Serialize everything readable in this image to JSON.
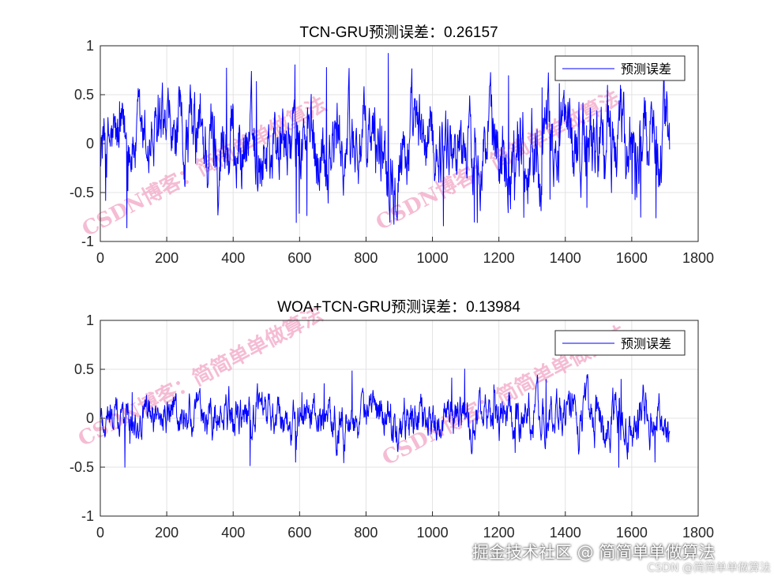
{
  "chart_data": [
    {
      "type": "line",
      "title": "TCN-GRU预测误差：0.26157",
      "xlabel": "",
      "ylabel": "",
      "xlim": [
        0,
        1800
      ],
      "ylim": [
        -1,
        1
      ],
      "xticks": [
        "0",
        "200",
        "400",
        "600",
        "800",
        "1000",
        "1200",
        "1400",
        "1600",
        "1800"
      ],
      "yticks": [
        "-1",
        "-0.5",
        "0",
        "0.5",
        "1"
      ],
      "grid": true,
      "legend_position": "top-right",
      "series": [
        {
          "name": "预测误差",
          "color": "#0000ff",
          "n_points": 1714,
          "approx_min": -0.88,
          "approx_max": 0.93,
          "envelope_x": [
            0,
            100,
            200,
            300,
            400,
            500,
            600,
            700,
            800,
            900,
            1000,
            1100,
            1200,
            1300,
            1400,
            1500,
            1600,
            1700
          ],
          "envelope_values": [
            0.45,
            0.4,
            0.42,
            0.55,
            0.55,
            0.48,
            0.45,
            0.5,
            0.48,
            0.55,
            0.45,
            0.42,
            0.5,
            0.55,
            0.48,
            0.55,
            0.5,
            0.55
          ]
        }
      ]
    },
    {
      "type": "line",
      "title": "WOA+TCN-GRU预测误差：0.13984",
      "xlabel": "",
      "ylabel": "",
      "xlim": [
        0,
        1800
      ],
      "ylim": [
        -1,
        1
      ],
      "xticks": [
        "0",
        "200",
        "400",
        "600",
        "800",
        "1000",
        "1200",
        "1400",
        "1600",
        "1800"
      ],
      "yticks": [
        "-1",
        "-0.5",
        "0",
        "0.5",
        "1"
      ],
      "grid": true,
      "legend_position": "top-right",
      "series": [
        {
          "name": "预测误差",
          "color": "#0000ff",
          "n_points": 1714,
          "approx_min": -0.71,
          "approx_max": 0.53,
          "envelope_x": [
            0,
            100,
            200,
            300,
            400,
            500,
            600,
            700,
            800,
            900,
            1000,
            1100,
            1200,
            1300,
            1400,
            1500,
            1600,
            1700
          ],
          "envelope_values": [
            0.22,
            0.22,
            0.24,
            0.24,
            0.28,
            0.24,
            0.26,
            0.26,
            0.24,
            0.3,
            0.24,
            0.26,
            0.26,
            0.26,
            0.28,
            0.28,
            0.3,
            0.3
          ]
        }
      ]
    }
  ],
  "watermarks": [
    "CSDN博客：简简单单做算法",
    "CSDN博客：简简单单做算法",
    "CSDN博客：简简单单做算法",
    "CSDN博客：简简单单做算法"
  ],
  "footer": {
    "main": "掘金技术社区 @ 简简单单做算法",
    "sub": "CSDN @简简单单做算法"
  }
}
